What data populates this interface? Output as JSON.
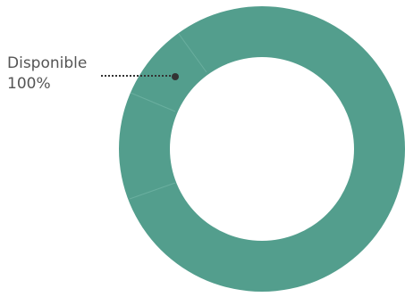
{
  "chart_data": {
    "type": "donut",
    "categories": [
      "Disponible"
    ],
    "values": [
      100
    ],
    "value_labels": [
      "100%"
    ],
    "color": "#539e8d"
  }
}
